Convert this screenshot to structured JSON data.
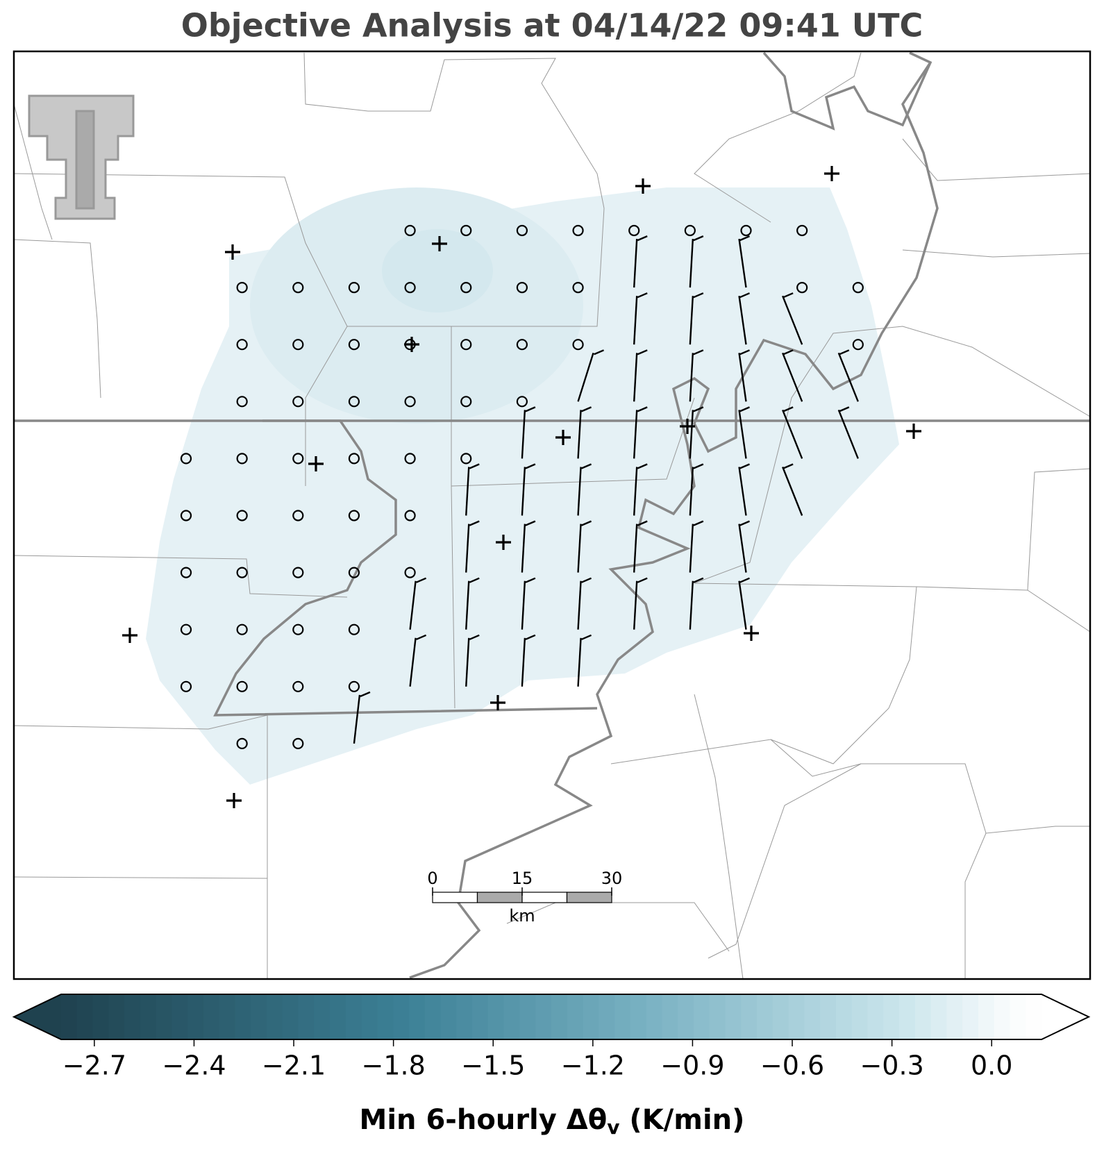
{
  "title": "Objective Analysis at 04/14/22 09:41 UTC",
  "map": {
    "scale_bar": {
      "ticks": [
        0,
        15,
        30
      ],
      "unit": "km"
    }
  },
  "colorbar": {
    "label_main": "Min 6-hourly Δθ",
    "label_sub": "v",
    "label_unit": "(K/min)",
    "lim": [
      -2.8,
      0.15
    ],
    "ticks": [
      {
        "value": -2.7,
        "label": "−2.7"
      },
      {
        "value": -2.4,
        "label": "−2.4"
      },
      {
        "value": -2.1,
        "label": "−2.1"
      },
      {
        "value": -1.8,
        "label": "−1.8"
      },
      {
        "value": -1.5,
        "label": "−1.5"
      },
      {
        "value": -1.2,
        "label": "−1.2"
      },
      {
        "value": -0.9,
        "label": "−0.9"
      },
      {
        "value": -0.6,
        "label": "−0.6"
      },
      {
        "value": -0.3,
        "label": "−0.3"
      },
      {
        "value": 0,
        "label": "0.0"
      }
    ]
  }
}
